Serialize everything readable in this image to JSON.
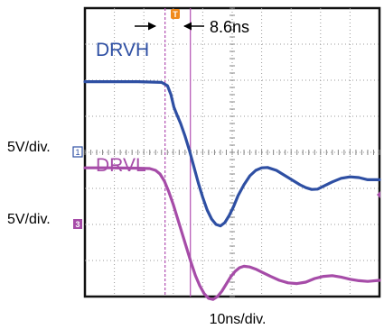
{
  "chart_data": {
    "type": "line",
    "title": "",
    "xlabel": "10ns/div.",
    "x_unit": "ns",
    "ns_per_division": 10,
    "x_divisions": 10,
    "y_divisions": 8,
    "grid": true,
    "annotations": {
      "delay_label": "8.6ns",
      "delay_ns": 8.6,
      "cursor_a_ns": 27.2,
      "cursor_b_ns": 35.8,
      "trigger_marker": "T"
    },
    "series": [
      {
        "name": "DRVH",
        "color": "#2e4fa3",
        "scale_label": "",
        "channel_marker": "",
        "unit": "div",
        "x": [
          0,
          9,
          18,
          26,
          28,
          29.2,
          30.2,
          31.2,
          32.5,
          34,
          35.5,
          37,
          38.5,
          40,
          41.5,
          43,
          44.5,
          46,
          47.5,
          49,
          50.5,
          52,
          54,
          56,
          58,
          60,
          62,
          65,
          68,
          71,
          73,
          75,
          77,
          79,
          81,
          84,
          87,
          90,
          93,
          96,
          100
        ],
        "y": [
          5.96,
          5.96,
          5.96,
          5.94,
          5.85,
          5.6,
          5.25,
          5.05,
          4.8,
          4.45,
          4.05,
          3.6,
          3.15,
          2.75,
          2.4,
          2.15,
          2.0,
          1.96,
          2.05,
          2.25,
          2.5,
          2.8,
          3.1,
          3.35,
          3.5,
          3.57,
          3.58,
          3.5,
          3.35,
          3.2,
          3.1,
          3.02,
          2.97,
          2.98,
          3.06,
          3.18,
          3.28,
          3.32,
          3.3,
          3.24,
          3.24
        ]
      },
      {
        "name": "DRVL",
        "color": "#a64ca8",
        "scale_label": "5V/div.",
        "channel_marker": "3",
        "unit": "div",
        "x": [
          0,
          9,
          18,
          22,
          24,
          25.5,
          27,
          28.5,
          30,
          31.5,
          33,
          34.5,
          36,
          37.5,
          39,
          40.5,
          42,
          43.5,
          45,
          46.5,
          48,
          49.5,
          51,
          52.5,
          54,
          56,
          58,
          60,
          63,
          66,
          69,
          72,
          75,
          78,
          81,
          84,
          87,
          90,
          93,
          96,
          100
        ],
        "y": [
          3.57,
          3.57,
          3.56,
          3.55,
          3.5,
          3.4,
          3.2,
          2.9,
          2.55,
          2.15,
          1.75,
          1.35,
          0.95,
          0.58,
          0.3,
          0.08,
          -0.05,
          -0.08,
          0.0,
          0.15,
          0.35,
          0.55,
          0.7,
          0.8,
          0.84,
          0.82,
          0.76,
          0.68,
          0.56,
          0.45,
          0.38,
          0.36,
          0.4,
          0.5,
          0.56,
          0.58,
          0.54,
          0.48,
          0.44,
          0.42,
          0.45
        ]
      }
    ],
    "extra_labels": {
      "left_scale_top": "5V/div.",
      "left_marker_top": "1"
    }
  }
}
